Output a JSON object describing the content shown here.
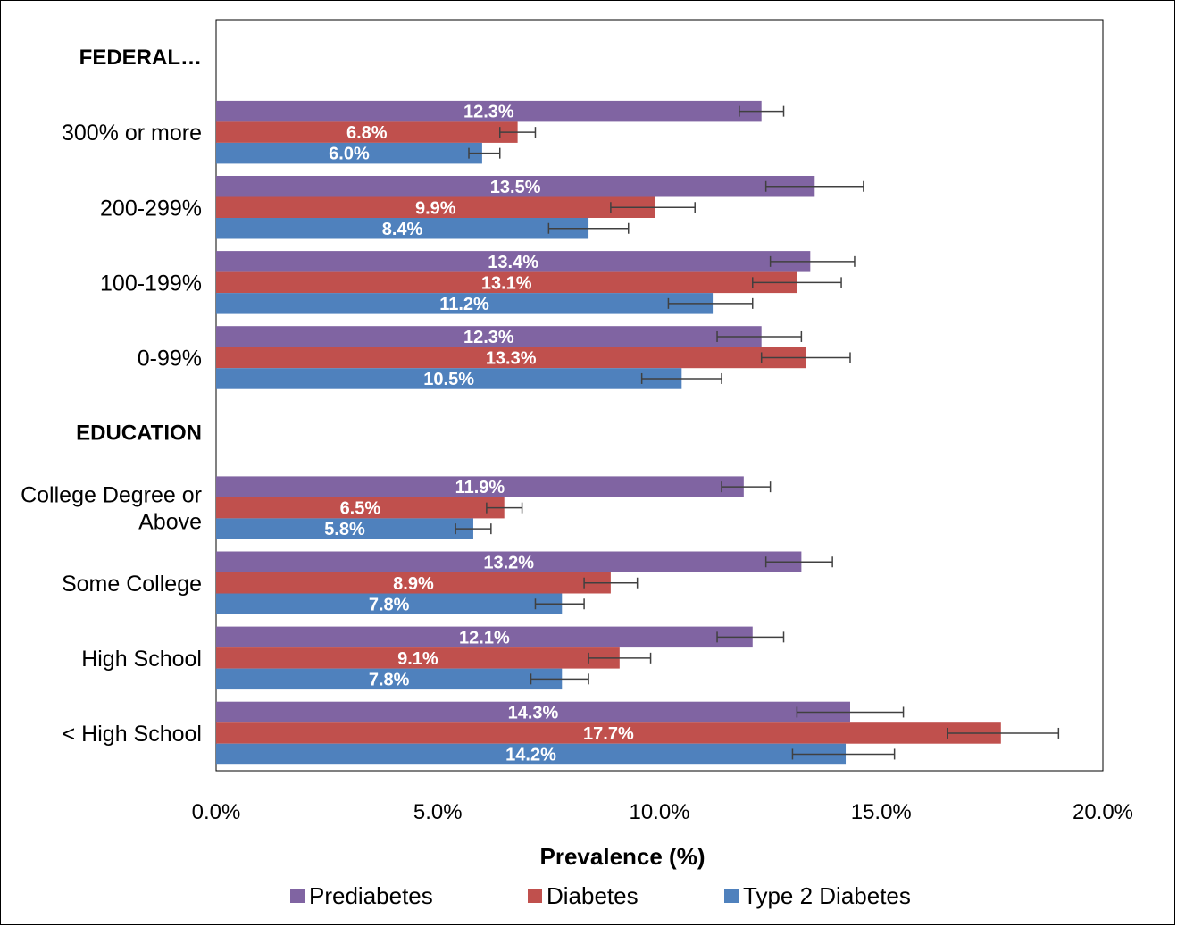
{
  "chart_data": {
    "type": "bar",
    "orientation": "horizontal",
    "xlabel": "Prevalence (%)",
    "xlim": [
      0,
      20
    ],
    "x_ticks": [
      "0.0%",
      "5.0%",
      "10.0%",
      "15.0%",
      "20.0%"
    ],
    "legend_position": "bottom",
    "rows": [
      {
        "kind": "section",
        "label": "FEDERAL…"
      },
      {
        "kind": "category",
        "label": "300% or more",
        "values": [
          {
            "series": 0,
            "value": 12.3,
            "label": "12.3%",
            "err": [
              11.8,
              12.8
            ]
          },
          {
            "series": 1,
            "value": 6.8,
            "label": "6.8%",
            "err": [
              6.4,
              7.2
            ]
          },
          {
            "series": 2,
            "value": 6.0,
            "label": "6.0%",
            "err": [
              5.7,
              6.4
            ]
          }
        ]
      },
      {
        "kind": "category",
        "label": "200-299%",
        "values": [
          {
            "series": 0,
            "value": 13.5,
            "label": "13.5%",
            "err": [
              12.4,
              14.6
            ]
          },
          {
            "series": 1,
            "value": 9.9,
            "label": "9.9%",
            "err": [
              8.9,
              10.8
            ]
          },
          {
            "series": 2,
            "value": 8.4,
            "label": "8.4%",
            "err": [
              7.5,
              9.3
            ]
          }
        ]
      },
      {
        "kind": "category",
        "label": "100-199%",
        "values": [
          {
            "series": 0,
            "value": 13.4,
            "label": "13.4%",
            "err": [
              12.5,
              14.4
            ]
          },
          {
            "series": 1,
            "value": 13.1,
            "label": "13.1%",
            "err": [
              12.1,
              14.1
            ]
          },
          {
            "series": 2,
            "value": 11.2,
            "label": "11.2%",
            "err": [
              10.2,
              12.1
            ]
          }
        ]
      },
      {
        "kind": "category",
        "label": "0-99%",
        "values": [
          {
            "series": 0,
            "value": 12.3,
            "label": "12.3%",
            "err": [
              11.3,
              13.2
            ]
          },
          {
            "series": 1,
            "value": 13.3,
            "label": "13.3%",
            "err": [
              12.3,
              14.3
            ]
          },
          {
            "series": 2,
            "value": 10.5,
            "label": "10.5%",
            "err": [
              9.6,
              11.4
            ]
          }
        ]
      },
      {
        "kind": "section",
        "label": "EDUCATION"
      },
      {
        "kind": "category",
        "label": "College Degree or Above",
        "label_lines": [
          "College Degree or",
          "Above"
        ],
        "values": [
          {
            "series": 0,
            "value": 11.9,
            "label": "11.9%",
            "err": [
              11.4,
              12.5
            ]
          },
          {
            "series": 1,
            "value": 6.5,
            "label": "6.5%",
            "err": [
              6.1,
              6.9
            ]
          },
          {
            "series": 2,
            "value": 5.8,
            "label": "5.8%",
            "err": [
              5.4,
              6.2
            ]
          }
        ]
      },
      {
        "kind": "category",
        "label": "Some College",
        "values": [
          {
            "series": 0,
            "value": 13.2,
            "label": "13.2%",
            "err": [
              12.4,
              13.9
            ]
          },
          {
            "series": 1,
            "value": 8.9,
            "label": "8.9%",
            "err": [
              8.3,
              9.5
            ]
          },
          {
            "series": 2,
            "value": 7.8,
            "label": "7.8%",
            "err": [
              7.2,
              8.3
            ]
          }
        ]
      },
      {
        "kind": "category",
        "label": "High School",
        "values": [
          {
            "series": 0,
            "value": 12.1,
            "label": "12.1%",
            "err": [
              11.3,
              12.8
            ]
          },
          {
            "series": 1,
            "value": 9.1,
            "label": "9.1%",
            "err": [
              8.4,
              9.8
            ]
          },
          {
            "series": 2,
            "value": 7.8,
            "label": "7.8%",
            "err": [
              7.1,
              8.4
            ]
          }
        ]
      },
      {
        "kind": "category",
        "label": "< High School",
        "values": [
          {
            "series": 0,
            "value": 14.3,
            "label": "14.3%",
            "err": [
              13.1,
              15.5
            ]
          },
          {
            "series": 1,
            "value": 17.7,
            "label": "17.7%",
            "err": [
              16.5,
              19.0
            ]
          },
          {
            "series": 2,
            "value": 14.2,
            "label": "14.2%",
            "err": [
              13.0,
              15.3
            ]
          }
        ]
      }
    ],
    "series": [
      {
        "name": "Prediabetes",
        "color": "#8064a2"
      },
      {
        "name": "Diabetes",
        "color": "#c0504d"
      },
      {
        "name": "Type 2 Diabetes",
        "color": "#4f81bd"
      }
    ]
  }
}
